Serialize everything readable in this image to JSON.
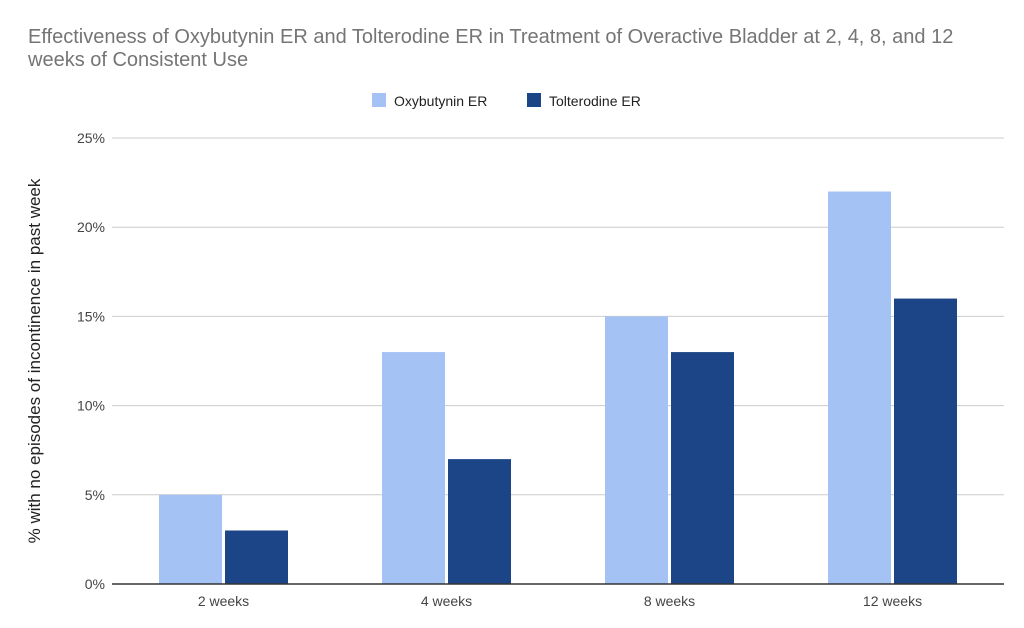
{
  "chart_data": {
    "type": "bar",
    "title": "Effectiveness of Oxybutynin ER and Tolterodine ER in Treatment of Overactive Bladder at 2, 4, 8, and 12 weeks of Consistent Use",
    "xlabel": "",
    "ylabel": "% with no episodes of incontinence in past week",
    "categories": [
      "2 weeks",
      "4 weeks",
      "8 weeks",
      "12 weeks"
    ],
    "series": [
      {
        "name": "Oxybutynin ER",
        "values": [
          5,
          13,
          15,
          22
        ],
        "color": "#a4c2f4"
      },
      {
        "name": "Tolterodine ER",
        "values": [
          3,
          7,
          13,
          16
        ],
        "color": "#1c4587"
      }
    ],
    "ylim": [
      0,
      25
    ],
    "yticks": [
      0,
      5,
      10,
      15,
      20,
      25
    ],
    "ytick_labels": [
      "0%",
      "5%",
      "10%",
      "15%",
      "20%",
      "25%"
    ],
    "grid": true,
    "legend_position": "top-center"
  }
}
